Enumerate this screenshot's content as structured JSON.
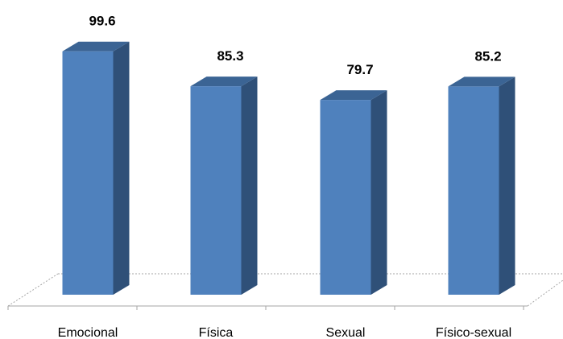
{
  "chart_data": {
    "type": "bar",
    "style": "3d-column",
    "title": "",
    "xlabel": "",
    "ylabel": "",
    "categories": [
      "Emocional",
      "Física",
      "Sexual",
      "Físico-sexual"
    ],
    "values": [
      99.6,
      85.3,
      79.7,
      85.2
    ],
    "value_labels": [
      "99.6",
      "85.3",
      "79.7",
      "85.2"
    ],
    "ylim": [
      0,
      100
    ],
    "grid": false,
    "legend": "none",
    "colors": {
      "bar_front": "#4f81bd",
      "bar_side": "#2f5078",
      "bar_top": "#3b6494",
      "floor_line": "#a6a6a6"
    }
  }
}
